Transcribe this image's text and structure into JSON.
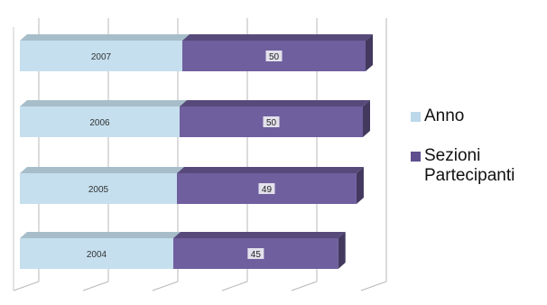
{
  "chart_data": {
    "type": "bar",
    "orientation": "horizontal",
    "stacked": true,
    "three_d": true,
    "title": "",
    "xlabel": "",
    "ylabel": "",
    "categories": [
      "2007",
      "2006",
      "2005",
      "2004"
    ],
    "series": [
      {
        "name": "Anno",
        "values": [
          2007,
          2006,
          2005,
          2004
        ],
        "labels": [
          "2007",
          "2006",
          "2005",
          "2004"
        ],
        "color": "#c5dfee"
      },
      {
        "name": "Sezioni Partecipanti",
        "values": [
          50,
          50,
          49,
          45
        ],
        "labels": [
          "50",
          "50",
          "49",
          "45"
        ],
        "color": "#6f5f9e"
      }
    ],
    "grid": true,
    "tick_labels": false,
    "legend_position": "right"
  },
  "legend": {
    "items": [
      {
        "label": "Anno",
        "color": "#bcd8ea"
      },
      {
        "label": "Sezioni\nPartecipanti",
        "color": "#5f4f8e"
      }
    ]
  }
}
